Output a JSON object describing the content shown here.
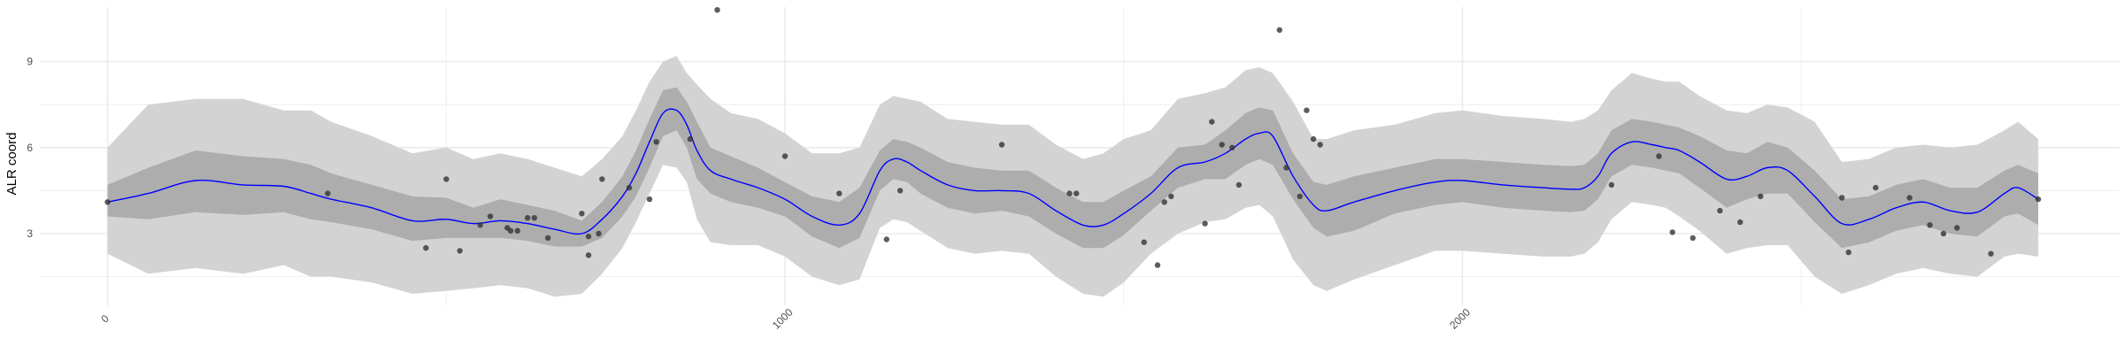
{
  "chart_data": {
    "type": "line",
    "title": "",
    "xlabel": "",
    "ylabel": "ALR coord",
    "xlim": [
      -100,
      2970
    ],
    "ylim": [
      0.5,
      10.9
    ],
    "x_ticks": [
      0,
      1000,
      2000
    ],
    "x_tick_labels": [
      "0",
      "1000",
      "2000"
    ],
    "x_minor_ticks": [
      500,
      1500,
      2500
    ],
    "y_ticks": [
      3,
      6,
      9
    ],
    "y_tick_labels": [
      "3",
      "6",
      "9"
    ],
    "y_minor_ticks": [
      1.5,
      4.5,
      7.5
    ],
    "grid": true,
    "legend": "none",
    "colors": {
      "mean_line": "#0000ff",
      "inner_band": "#adadad",
      "outer_band": "#d3d3d3",
      "points": "#333333",
      "grid": "#ebebeb"
    },
    "series": [
      {
        "role": "posterior-mean",
        "x": [
          0,
          60,
          130,
          200,
          260,
          300,
          330,
          390,
          450,
          500,
          540,
          580,
          620,
          660,
          700,
          730,
          760,
          780,
          800,
          820,
          840,
          855,
          870,
          890,
          920,
          960,
          1000,
          1040,
          1080,
          1110,
          1140,
          1160,
          1180,
          1200,
          1240,
          1280,
          1320,
          1360,
          1400,
          1440,
          1470,
          1500,
          1540,
          1580,
          1620,
          1650,
          1680,
          1700,
          1720,
          1750,
          1780,
          1800,
          1840,
          1900,
          1960,
          2000,
          2060,
          2120,
          2160,
          2180,
          2200,
          2220,
          2250,
          2280,
          2300,
          2320,
          2350,
          2390,
          2420,
          2450,
          2480,
          2520,
          2560,
          2600,
          2640,
          2680,
          2720,
          2760,
          2800,
          2820,
          2850
        ],
        "y": [
          4.1,
          4.4,
          4.85,
          4.7,
          4.65,
          4.4,
          4.2,
          3.9,
          3.45,
          3.5,
          3.35,
          3.45,
          3.35,
          3.15,
          3.0,
          3.5,
          4.3,
          5.1,
          6.2,
          7.2,
          7.3,
          6.8,
          5.9,
          5.2,
          4.9,
          4.6,
          4.2,
          3.6,
          3.3,
          3.7,
          5.2,
          5.6,
          5.5,
          5.2,
          4.7,
          4.5,
          4.5,
          4.4,
          3.8,
          3.3,
          3.3,
          3.7,
          4.4,
          5.3,
          5.5,
          5.8,
          6.3,
          6.5,
          6.4,
          5.0,
          4.0,
          3.8,
          4.1,
          4.5,
          4.8,
          4.85,
          4.7,
          4.6,
          4.55,
          4.6,
          5.0,
          5.8,
          6.2,
          6.1,
          6.0,
          5.9,
          5.5,
          4.9,
          5.0,
          5.3,
          5.2,
          4.3,
          3.35,
          3.5,
          3.9,
          4.1,
          3.8,
          3.75,
          4.4,
          4.6,
          4.2
        ]
      },
      {
        "role": "inner-interval",
        "x": [
          0,
          60,
          130,
          200,
          260,
          300,
          330,
          390,
          450,
          500,
          540,
          580,
          620,
          660,
          700,
          730,
          760,
          780,
          800,
          820,
          840,
          855,
          870,
          890,
          920,
          960,
          1000,
          1040,
          1080,
          1110,
          1140,
          1160,
          1180,
          1200,
          1240,
          1280,
          1320,
          1360,
          1400,
          1440,
          1470,
          1500,
          1540,
          1580,
          1620,
          1650,
          1680,
          1700,
          1720,
          1750,
          1780,
          1800,
          1840,
          1900,
          1960,
          2000,
          2060,
          2120,
          2160,
          2180,
          2200,
          2220,
          2250,
          2280,
          2300,
          2320,
          2350,
          2390,
          2420,
          2450,
          2480,
          2520,
          2560,
          2600,
          2640,
          2680,
          2720,
          2760,
          2800,
          2820,
          2850
        ],
        "lower": [
          3.6,
          3.5,
          3.75,
          3.65,
          3.75,
          3.5,
          3.4,
          3.15,
          2.75,
          2.85,
          2.85,
          2.85,
          2.75,
          2.55,
          2.55,
          2.85,
          3.6,
          4.3,
          5.3,
          6.4,
          6.6,
          6.0,
          4.9,
          4.4,
          4.1,
          3.9,
          3.6,
          2.9,
          2.5,
          2.85,
          4.5,
          4.9,
          4.8,
          4.4,
          3.9,
          3.7,
          3.8,
          3.6,
          3.0,
          2.5,
          2.5,
          2.95,
          3.8,
          4.6,
          4.9,
          4.9,
          5.4,
          5.6,
          5.4,
          4.2,
          3.2,
          2.9,
          3.1,
          3.7,
          4.0,
          4.1,
          3.9,
          3.8,
          3.75,
          3.8,
          4.2,
          5.0,
          5.4,
          5.3,
          5.2,
          5.1,
          4.6,
          3.9,
          4.2,
          4.4,
          4.4,
          3.4,
          2.5,
          2.7,
          3.1,
          3.3,
          3.0,
          2.9,
          3.6,
          3.7,
          3.3
        ],
        "upper": [
          4.7,
          5.3,
          5.9,
          5.7,
          5.6,
          5.4,
          5.1,
          4.7,
          4.3,
          4.25,
          3.9,
          4.2,
          4.0,
          3.8,
          3.45,
          4.1,
          5.0,
          5.9,
          7.0,
          8.0,
          8.1,
          7.6,
          6.9,
          6.0,
          5.7,
          5.3,
          4.8,
          4.3,
          4.1,
          4.6,
          5.9,
          6.3,
          6.2,
          6.0,
          5.5,
          5.3,
          5.2,
          5.2,
          4.6,
          4.1,
          4.1,
          4.5,
          5.0,
          6.0,
          6.1,
          6.6,
          7.2,
          7.4,
          7.3,
          5.8,
          4.8,
          4.7,
          5.0,
          5.3,
          5.6,
          5.6,
          5.5,
          5.4,
          5.35,
          5.4,
          5.8,
          6.6,
          7.0,
          6.9,
          6.8,
          6.7,
          6.4,
          5.9,
          5.8,
          6.2,
          6.0,
          5.2,
          4.2,
          4.3,
          4.7,
          4.9,
          4.6,
          4.6,
          5.2,
          5.4,
          5.1
        ]
      },
      {
        "role": "outer-interval",
        "x": [
          0,
          60,
          130,
          200,
          260,
          300,
          330,
          390,
          450,
          500,
          540,
          580,
          620,
          660,
          700,
          730,
          760,
          780,
          800,
          820,
          840,
          855,
          870,
          890,
          920,
          960,
          1000,
          1040,
          1080,
          1110,
          1140,
          1160,
          1180,
          1200,
          1240,
          1280,
          1320,
          1360,
          1400,
          1440,
          1470,
          1500,
          1540,
          1580,
          1620,
          1650,
          1680,
          1700,
          1720,
          1750,
          1780,
          1800,
          1840,
          1900,
          1960,
          2000,
          2060,
          2120,
          2160,
          2180,
          2200,
          2220,
          2250,
          2280,
          2300,
          2320,
          2350,
          2390,
          2420,
          2450,
          2480,
          2520,
          2560,
          2600,
          2640,
          2680,
          2720,
          2760,
          2800,
          2820,
          2850
        ],
        "lower": [
          2.3,
          1.6,
          1.8,
          1.6,
          1.9,
          1.5,
          1.5,
          1.3,
          0.9,
          1.0,
          1.1,
          1.2,
          1.1,
          0.8,
          0.9,
          1.6,
          2.5,
          3.4,
          4.4,
          5.4,
          5.3,
          4.8,
          3.5,
          2.7,
          2.6,
          2.6,
          2.2,
          1.5,
          1.2,
          1.4,
          3.2,
          3.5,
          3.4,
          3.1,
          2.5,
          2.3,
          2.4,
          2.3,
          1.5,
          0.9,
          0.8,
          1.3,
          2.3,
          3.0,
          3.4,
          3.5,
          3.9,
          4.0,
          3.6,
          2.1,
          1.2,
          1.0,
          1.4,
          1.9,
          2.4,
          2.4,
          2.3,
          2.2,
          2.2,
          2.3,
          2.7,
          3.5,
          4.1,
          4.0,
          3.9,
          3.6,
          3.1,
          2.3,
          2.5,
          2.6,
          2.6,
          1.5,
          0.9,
          1.2,
          1.6,
          1.8,
          1.6,
          1.5,
          2.2,
          2.3,
          2.2
        ],
        "upper": [
          6.0,
          7.5,
          7.7,
          7.7,
          7.3,
          7.3,
          6.9,
          6.4,
          5.8,
          6.0,
          5.6,
          5.8,
          5.6,
          5.3,
          5.0,
          5.6,
          6.4,
          7.3,
          8.3,
          9.0,
          9.2,
          8.6,
          8.2,
          7.7,
          7.2,
          7.0,
          6.5,
          5.8,
          5.8,
          6.0,
          7.5,
          7.8,
          7.7,
          7.6,
          7.0,
          6.9,
          6.8,
          6.8,
          6.1,
          5.6,
          5.8,
          6.3,
          6.6,
          7.7,
          7.9,
          8.1,
          8.7,
          8.8,
          8.6,
          7.6,
          6.3,
          6.3,
          6.6,
          6.8,
          7.2,
          7.3,
          7.1,
          7.0,
          6.9,
          7.0,
          7.3,
          8.0,
          8.6,
          8.4,
          8.3,
          8.3,
          7.8,
          7.3,
          7.2,
          7.5,
          7.4,
          6.9,
          5.5,
          5.6,
          6.0,
          6.1,
          6.0,
          6.1,
          6.6,
          6.9,
          6.3
        ]
      },
      {
        "role": "observations",
        "x": [
          0,
          325,
          470,
          500,
          520,
          550,
          565,
          590,
          595,
          605,
          620,
          630,
          650,
          700,
          710,
          710,
          725,
          730,
          770,
          800,
          810,
          860,
          900,
          1000,
          1080,
          1150,
          1170,
          1320,
          1420,
          1430,
          1530,
          1550,
          1560,
          1570,
          1620,
          1630,
          1645,
          1660,
          1670,
          1730,
          1740,
          1760,
          1770,
          1780,
          1790,
          2220,
          2290,
          2310,
          2340,
          2380,
          2410,
          2440,
          2560,
          2570,
          2610,
          2660,
          2690,
          2710,
          2730,
          2780,
          2850
        ],
        "y": [
          4.1,
          4.4,
          2.5,
          4.9,
          2.4,
          3.3,
          3.6,
          3.2,
          3.1,
          3.1,
          3.55,
          3.55,
          2.85,
          3.7,
          2.25,
          2.9,
          3.0,
          4.9,
          4.6,
          4.2,
          6.2,
          6.3,
          10.8,
          5.7,
          4.4,
          2.8,
          4.5,
          6.1,
          4.4,
          4.4,
          2.7,
          1.9,
          4.1,
          4.3,
          3.35,
          6.9,
          6.1,
          6.0,
          4.7,
          10.1,
          5.3,
          4.3,
          7.3,
          6.3,
          6.1,
          4.7,
          5.7,
          3.05,
          2.85,
          3.8,
          3.4,
          4.3,
          4.25,
          2.35,
          4.6,
          4.25,
          3.3,
          3.0,
          3.2,
          2.3,
          4.2
        ]
      }
    ]
  }
}
